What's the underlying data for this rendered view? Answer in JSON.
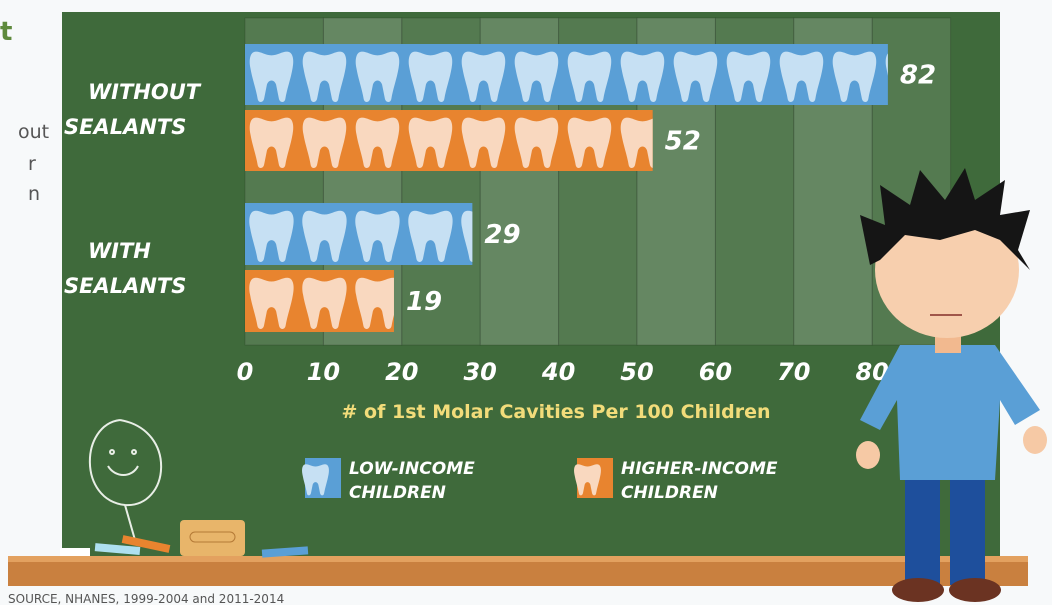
{
  "chart_data": {
    "type": "hbar",
    "intro": {
      "title": "t",
      "lines": [
        "out",
        "r",
        "n"
      ]
    },
    "categories": [
      "WITHOUT SEALANTS",
      "WITH SEALANTS"
    ],
    "series": [
      {
        "name": "LOW-INCOME CHILDREN",
        "color": "#5a9fd6",
        "tooth": "#c6e0f3",
        "values": [
          82,
          29
        ]
      },
      {
        "name": "HIGHER-INCOME CHILDREN",
        "color": "#e8842f",
        "tooth": "#f9d8bf",
        "values": [
          52,
          19
        ]
      }
    ],
    "xlim": [
      0,
      90
    ],
    "xticks": [
      0,
      10,
      20,
      30,
      40,
      50,
      60,
      70,
      80
    ],
    "xlabel": "# of 1st Molar Cavities Per 100 Children",
    "grid": true,
    "source": "SOURCE, NHANES, 1999-2004 and 2011-2014"
  }
}
